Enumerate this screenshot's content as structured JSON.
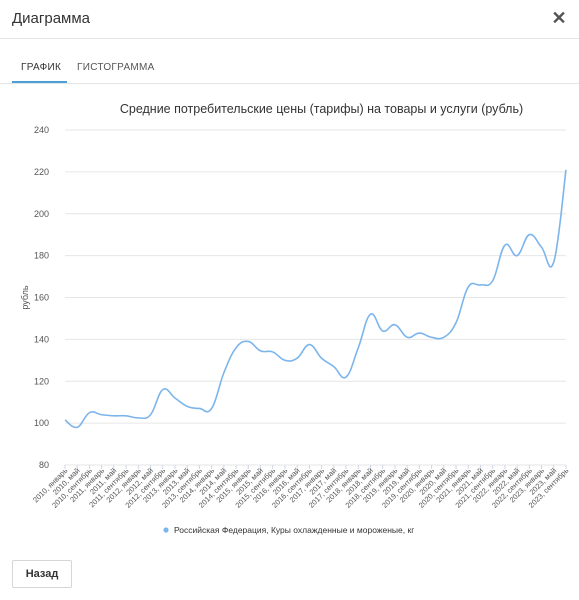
{
  "dialog": {
    "title": "Диаграмма",
    "close_glyph": "✕"
  },
  "tabs": [
    {
      "label": "ГРАФИК",
      "active": true
    },
    {
      "label": "ГИСТОГРАММА",
      "active": false
    }
  ],
  "footer": {
    "back_label": "Назад"
  },
  "colors": {
    "series": "#7cb5ec",
    "tab_accent": "#4a9fd8",
    "grid": "#e6e6e6"
  },
  "chart_data": {
    "type": "line",
    "title": "Средние потребительские цены (тарифы) на товары и услуги (рубль)",
    "ylabel": "рубль",
    "xlabel": "",
    "ylim": [
      80,
      240
    ],
    "yticks": [
      80,
      100,
      120,
      140,
      160,
      180,
      200,
      220,
      240
    ],
    "grid": true,
    "legend_position": "bottom",
    "x": [
      "2010, январь",
      "2010, май",
      "2010, сентябрь",
      "2011, январь",
      "2011, май",
      "2011, сентябрь",
      "2012, январь",
      "2012, май",
      "2012, сентябрь",
      "2013, январь",
      "2013, май",
      "2013, сентябрь",
      "2014, январь",
      "2014, май",
      "2014, сентябрь",
      "2015, январь",
      "2015, май",
      "2015, сентябрь",
      "2016, январь",
      "2016, май",
      "2016, сентябрь",
      "2017, январь",
      "2017, май",
      "2017, сентябрь",
      "2018, январь",
      "2018, май",
      "2018, сентябрь",
      "2019, январь",
      "2019, май",
      "2019, сентябрь",
      "2020, январь",
      "2020, май",
      "2020, сентябрь",
      "2021, январь",
      "2021, май",
      "2021, сентябрь",
      "2022, январь",
      "2022, май",
      "2022, сентябрь",
      "2023, январь",
      "2023, май",
      "2023, сентябрь"
    ],
    "series": [
      {
        "name": "Российская Федерация, Куры охлажденные и мороженые, кг",
        "values": [
          101.5,
          98,
          105,
          104,
          103.5,
          103.5,
          102.5,
          104,
          116,
          112,
          108,
          107,
          107,
          124,
          136,
          139,
          134.5,
          134,
          130,
          131,
          137.5,
          131,
          127,
          122,
          136,
          152,
          144,
          147,
          141,
          143,
          141,
          141,
          148,
          165,
          166,
          168,
          185,
          180,
          190,
          184,
          177,
          221
        ]
      }
    ]
  }
}
